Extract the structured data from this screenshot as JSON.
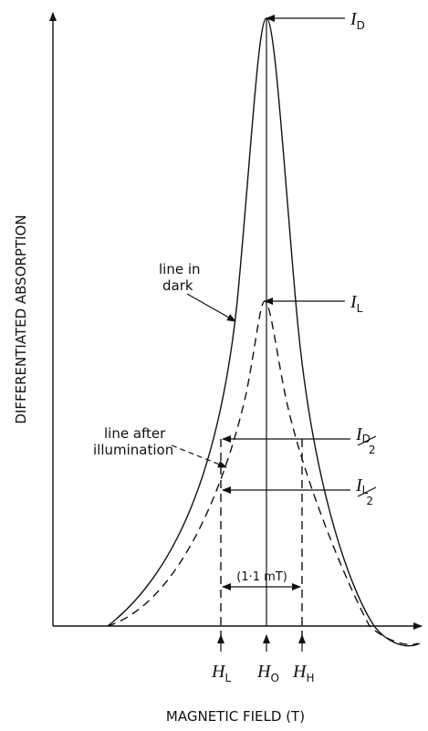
{
  "y_axis_label": "DIFFERENTIATED ABSORPTION",
  "x_axis_label": "MAGNETIC FIELD (T)",
  "annotations": {
    "dark_line": [
      "line in",
      "dark"
    ],
    "illuminated_line": [
      "line after",
      "illumination"
    ],
    "width": "(1·1 mT)"
  },
  "levels": {
    "I_D": {
      "symbol": "I",
      "subscript": "D"
    },
    "I_L": {
      "symbol": "I",
      "subscript": "L"
    },
    "I_D_half": {
      "symbol": "I",
      "subscript": "D",
      "denominator": "2"
    },
    "I_L_half": {
      "symbol": "I",
      "subscript": "L",
      "denominator": "2"
    }
  },
  "fields": [
    {
      "symbol": "H",
      "subscript": "L"
    },
    {
      "symbol": "H",
      "subscript": "O"
    },
    {
      "symbol": "H",
      "subscript": "H"
    }
  ]
}
